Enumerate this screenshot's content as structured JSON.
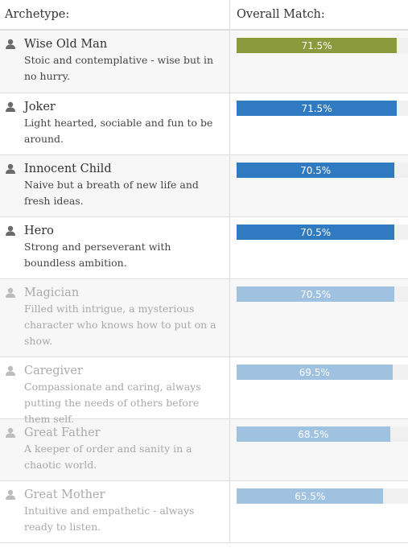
{
  "header": {
    "archetype_label": "Archetype:",
    "match_label": "Overall Match:"
  },
  "colors": {
    "top_match": "#8a9a3c",
    "strong": "#2f7ac0",
    "weak": "#9fc2e0",
    "track": "#f0f0f0"
  },
  "rows": [
    {
      "name": "Wise Old Man",
      "desc": "Stoic and contemplative - wise but in no hurry.",
      "percent_label": "71.5%",
      "percent": 71.5,
      "tier": "top_match",
      "faded": false
    },
    {
      "name": "Joker",
      "desc": "Light hearted, sociable and fun to be around.",
      "percent_label": "71.5%",
      "percent": 71.5,
      "tier": "strong",
      "faded": false
    },
    {
      "name": "Innocent Child",
      "desc": "Naive but a breath of new life and fresh ideas.",
      "percent_label": "70.5%",
      "percent": 70.5,
      "tier": "strong",
      "faded": false
    },
    {
      "name": "Hero",
      "desc": "Strong and perseverant with boundless ambition.",
      "percent_label": "70.5%",
      "percent": 70.5,
      "tier": "strong",
      "faded": false
    },
    {
      "name": "Magician",
      "desc": "Filled with intrigue, a mysterious character who knows how to put on a show.",
      "percent_label": "70.5%",
      "percent": 70.5,
      "tier": "weak",
      "faded": true
    },
    {
      "name": "Caregiver",
      "desc": "Compassionate and caring, always putting the needs of others before them self.",
      "percent_label": "69.5%",
      "percent": 69.5,
      "tier": "weak",
      "faded": true
    },
    {
      "name": "Great Father",
      "desc": "A keeper of order and sanity in a chaotic world.",
      "percent_label": "68.5%",
      "percent": 68.5,
      "tier": "weak",
      "faded": true
    },
    {
      "name": "Great Mother",
      "desc": "Intuitive and empathetic - always ready to listen.",
      "percent_label": "65.5%",
      "percent": 65.5,
      "tier": "weak",
      "faded": true
    }
  ]
}
